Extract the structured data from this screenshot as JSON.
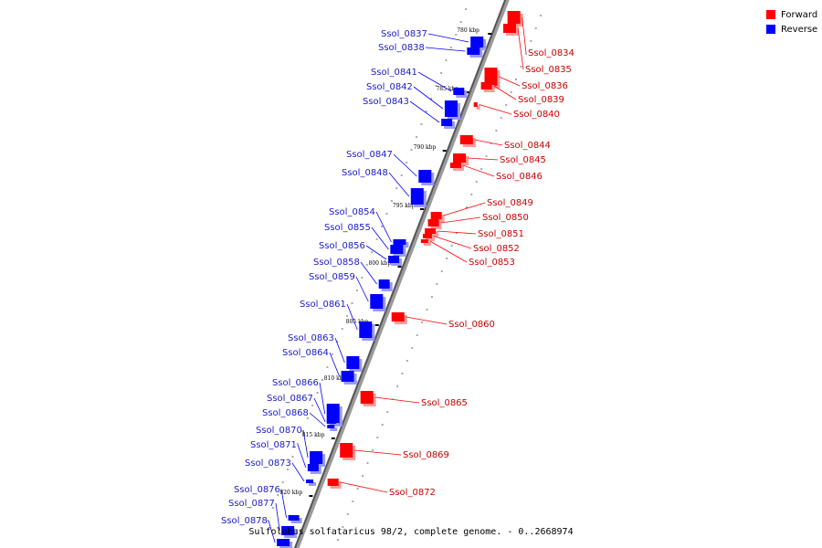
{
  "legend": [
    {
      "label": "Forward",
      "color": "#ff0000"
    },
    {
      "label": "Reverse",
      "color": "#0000ff"
    }
  ],
  "caption": "Sulfolobus solfataricus 98/2, complete genome. - 0..2668974",
  "colors": {
    "forward": "#ff0000",
    "reverse": "#0000ff",
    "forward_label": "#cc0000",
    "reverse_label": "#1a1acc"
  },
  "tick_labels": [
    "780 kbp",
    "785 kbp",
    "790 kbp",
    "795 kbp",
    "800 kbp",
    "805 kbp",
    "810 kbp",
    "815 kbp",
    "820 kbp"
  ],
  "genes": [
    {
      "label": "Ssol_0834",
      "strand": "forward"
    },
    {
      "label": "Ssol_0835",
      "strand": "forward"
    },
    {
      "label": "Ssol_0836",
      "strand": "forward"
    },
    {
      "label": "Ssol_0837",
      "strand": "reverse"
    },
    {
      "label": "Ssol_0838",
      "strand": "reverse"
    },
    {
      "label": "Ssol_0839",
      "strand": "forward"
    },
    {
      "label": "Ssol_0840",
      "strand": "forward"
    },
    {
      "label": "Ssol_0841",
      "strand": "reverse"
    },
    {
      "label": "Ssol_0842",
      "strand": "reverse"
    },
    {
      "label": "Ssol_0843",
      "strand": "reverse"
    },
    {
      "label": "Ssol_0844",
      "strand": "forward"
    },
    {
      "label": "Ssol_0845",
      "strand": "forward"
    },
    {
      "label": "Ssol_0846",
      "strand": "forward"
    },
    {
      "label": "Ssol_0847",
      "strand": "reverse"
    },
    {
      "label": "Ssol_0848",
      "strand": "reverse"
    },
    {
      "label": "Ssol_0849",
      "strand": "forward"
    },
    {
      "label": "Ssol_0850",
      "strand": "forward"
    },
    {
      "label": "Ssol_0851",
      "strand": "forward"
    },
    {
      "label": "Ssol_0852",
      "strand": "forward"
    },
    {
      "label": "Ssol_0853",
      "strand": "forward"
    },
    {
      "label": "Ssol_0854",
      "strand": "reverse"
    },
    {
      "label": "Ssol_0855",
      "strand": "reverse"
    },
    {
      "label": "Ssol_0856",
      "strand": "reverse"
    },
    {
      "label": "Ssol_0858",
      "strand": "reverse"
    },
    {
      "label": "Ssol_0859",
      "strand": "reverse"
    },
    {
      "label": "Ssol_0860",
      "strand": "forward"
    },
    {
      "label": "Ssol_0861",
      "strand": "reverse"
    },
    {
      "label": "Ssol_0863",
      "strand": "reverse"
    },
    {
      "label": "Ssol_0864",
      "strand": "reverse"
    },
    {
      "label": "Ssol_0865",
      "strand": "forward"
    },
    {
      "label": "Ssol_0866",
      "strand": "reverse"
    },
    {
      "label": "Ssol_0867",
      "strand": "reverse"
    },
    {
      "label": "Ssol_0868",
      "strand": "reverse"
    },
    {
      "label": "Ssol_0869",
      "strand": "forward"
    },
    {
      "label": "Ssol_0870",
      "strand": "reverse"
    },
    {
      "label": "Ssol_0871",
      "strand": "reverse"
    },
    {
      "label": "Ssol_0872",
      "strand": "forward"
    },
    {
      "label": "Ssol_0873",
      "strand": "reverse"
    },
    {
      "label": "Ssol_0876",
      "strand": "reverse"
    },
    {
      "label": "Ssol_0877",
      "strand": "reverse"
    },
    {
      "label": "Ssol_0878",
      "strand": "reverse"
    }
  ]
}
